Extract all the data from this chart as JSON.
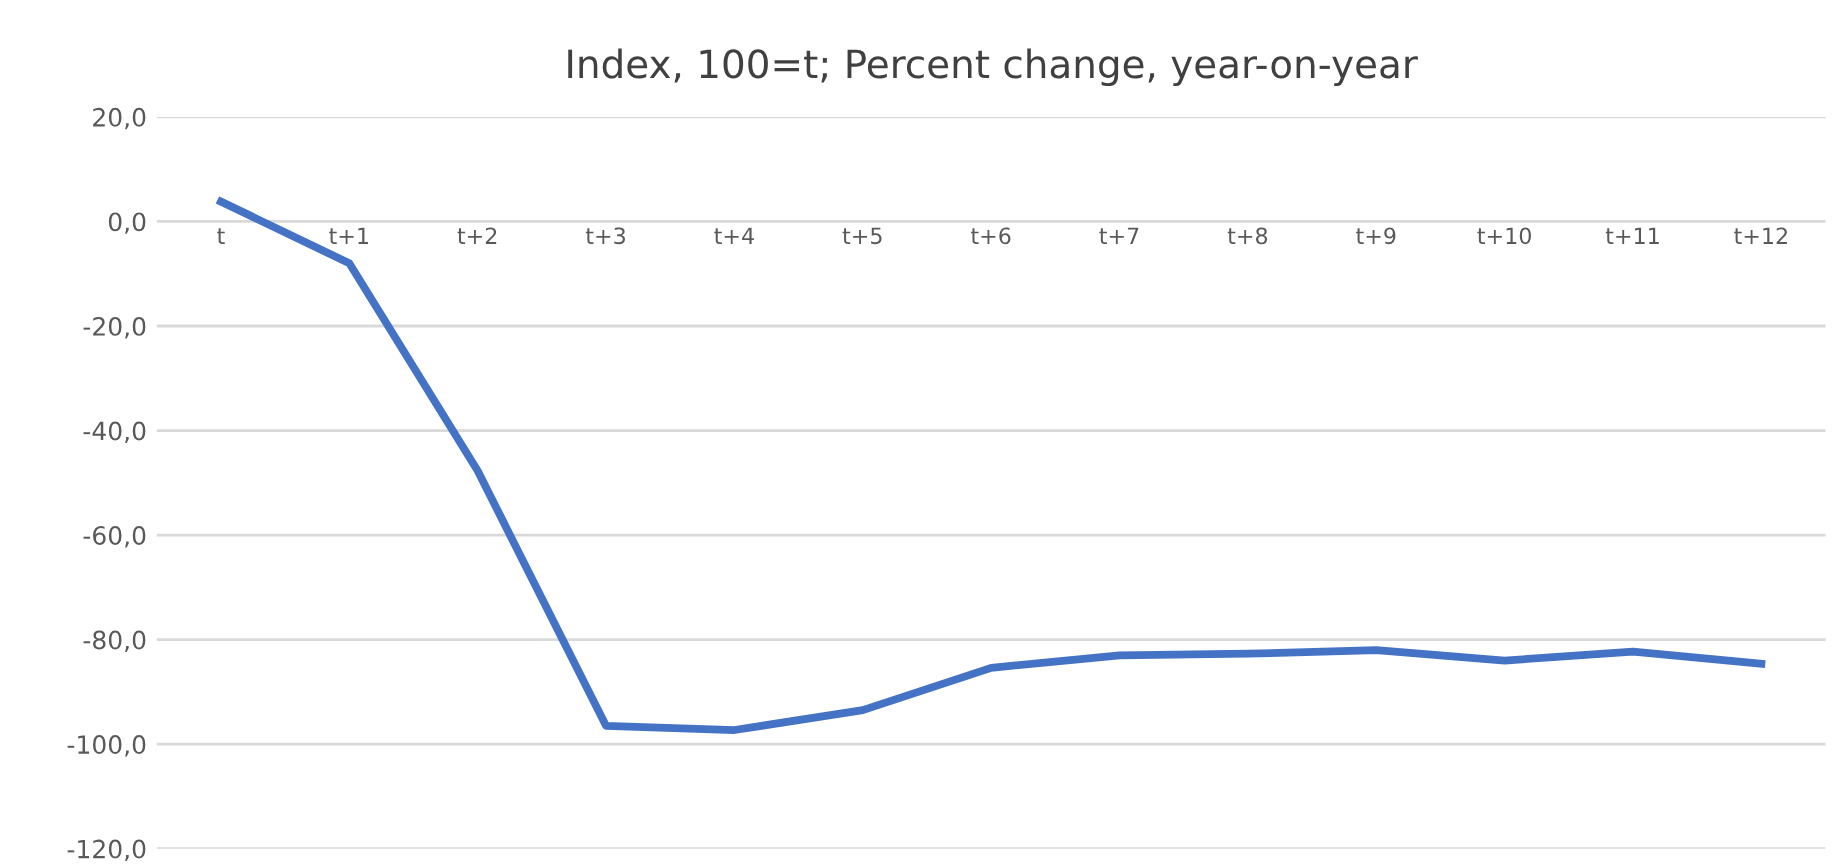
{
  "chart_data": {
    "type": "line",
    "title": "Index, 100=t; Percent change, year-on-year",
    "categories": [
      "t",
      "t+1",
      "t+2",
      "t+3",
      "t+4",
      "t+5",
      "t+6",
      "t+7",
      "t+8",
      "t+9",
      "t+10",
      "t+11",
      "t+12"
    ],
    "series": [
      {
        "color": "#4472c4",
        "values": [
          3.8,
          -8,
          -47.7,
          -96.5,
          -97.3,
          -93.5,
          -85.4,
          -83,
          -82.7,
          -82,
          -84,
          -82.3,
          -84.6
        ]
      }
    ],
    "ylim": [
      -120,
      20
    ],
    "yticks": [
      {
        "value": -120,
        "label": "-120,0"
      },
      {
        "value": -100,
        "label": "-100,0"
      },
      {
        "value": -80,
        "label": "-80,0"
      },
      {
        "value": -60,
        "label": "-60,0"
      },
      {
        "value": -40,
        "label": "-40,0"
      },
      {
        "value": -20,
        "label": "-20,0"
      },
      {
        "value": 0,
        "label": "0,0"
      },
      {
        "value": 20,
        "label": "20,0"
      }
    ],
    "grid": "y",
    "legend": false,
    "marker": "none",
    "line_style": "solid"
  }
}
